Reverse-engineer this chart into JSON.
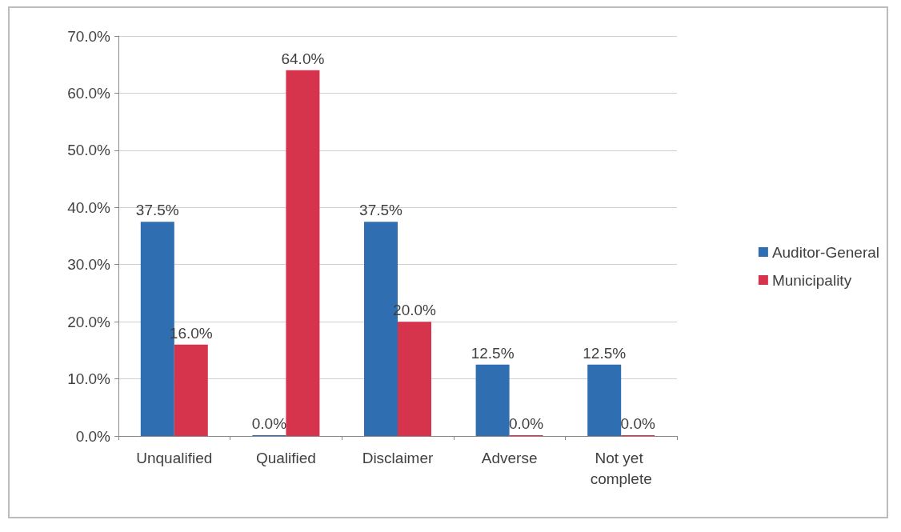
{
  "chart_data": {
    "type": "bar",
    "categories": [
      "Unqualified",
      "Qualified",
      "Disclaimer",
      "Adverse",
      "Not yet complete"
    ],
    "series": [
      {
        "name": "Auditor-General",
        "color": "#2f6eb0",
        "values": [
          37.5,
          0,
          37.5,
          12.5,
          12.5
        ],
        "value_labels": [
          "37.5%",
          "0.0%",
          "37.5%",
          "12.5%",
          "12.5%"
        ]
      },
      {
        "name": "Municipality",
        "color": "#d6344c",
        "values": [
          16,
          64,
          20,
          0,
          0
        ],
        "value_labels": [
          "16.0%",
          "64.0%",
          "20.0%",
          "0.0%",
          "0.0%"
        ]
      }
    ],
    "ylim": [
      0,
      70
    ],
    "yticks": [
      {
        "value": 0,
        "label": "0.0%"
      },
      {
        "value": 10,
        "label": "10.0%"
      },
      {
        "value": 20,
        "label": "20.0%"
      },
      {
        "value": 30,
        "label": "30.0%"
      },
      {
        "value": 40,
        "label": "40.0%"
      },
      {
        "value": 50,
        "label": "50.0%"
      },
      {
        "value": 60,
        "label": "60.0%"
      },
      {
        "value": 70,
        "label": "70.0%"
      }
    ],
    "grid": "y",
    "legend": "right"
  }
}
